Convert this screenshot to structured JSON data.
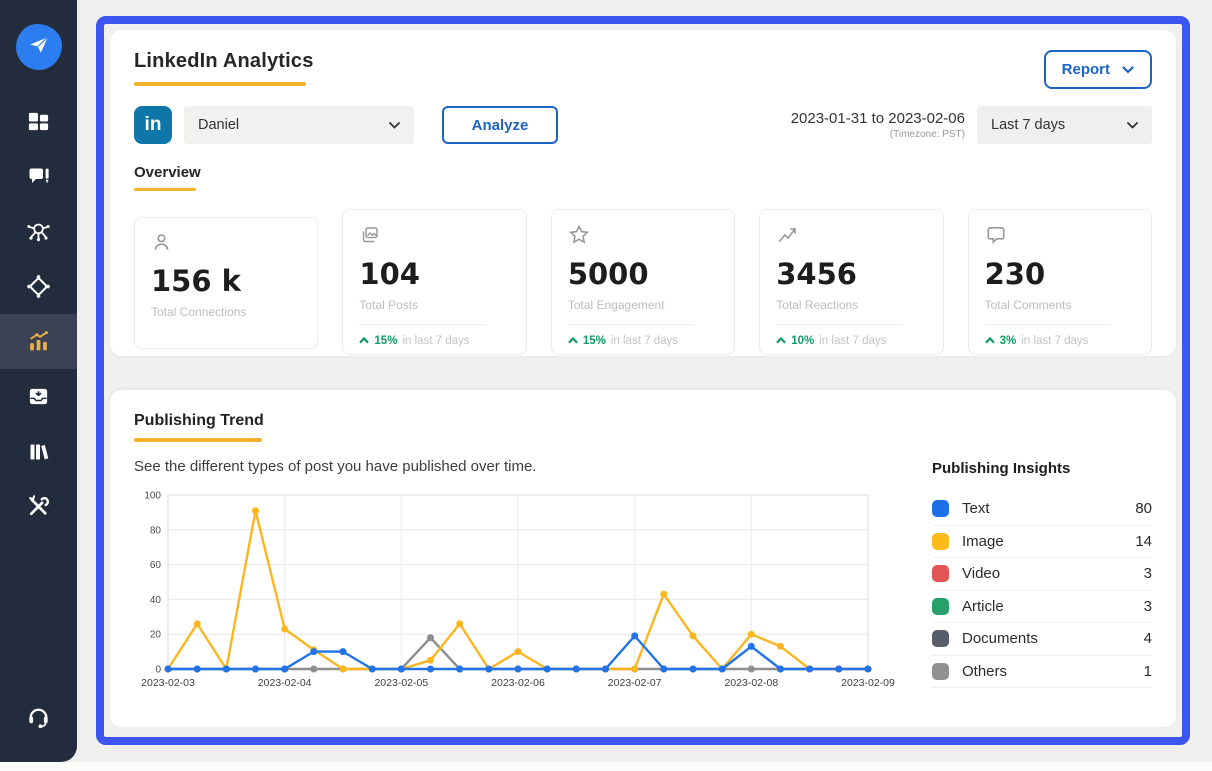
{
  "header": {
    "title": "LinkedIn Analytics",
    "report_button": "Report",
    "linkedin_badge": "in",
    "account_select": "Daniel",
    "analyze_button": "Analyze",
    "date_range": "2023-01-31 to 2023-02-06",
    "timezone": "(Timezone: PST)",
    "range_select": "Last 7 days",
    "tab_overview": "Overview"
  },
  "sidebar": {
    "items": [
      {
        "icon": "send-logo-icon"
      },
      {
        "icon": "dashboard-grid-icon"
      },
      {
        "icon": "chat-compose-icon"
      },
      {
        "icon": "network-share-icon"
      },
      {
        "icon": "diamond-nodes-icon"
      },
      {
        "icon": "analytics-bars-icon",
        "active": true
      },
      {
        "icon": "inbox-import-icon"
      },
      {
        "icon": "library-books-icon"
      },
      {
        "icon": "tools-icon"
      },
      {
        "icon": "headset-support-icon"
      }
    ]
  },
  "stats": [
    {
      "icon": "person-icon",
      "value": "156 k",
      "label": "Total Connections"
    },
    {
      "icon": "image-post-icon",
      "value": "104",
      "label": "Total Posts",
      "delta": "15%",
      "delta_suffix": "in last 7 days"
    },
    {
      "icon": "star-icon",
      "value": "5000",
      "label": "Total Engagement",
      "delta": "15%",
      "delta_suffix": "in last 7 days"
    },
    {
      "icon": "trend-icon",
      "value": "3456",
      "label": "Total Reactions",
      "delta": "10%",
      "delta_suffix": "in last 7 days"
    },
    {
      "icon": "comment-icon",
      "value": "230",
      "label": "Total Comments",
      "delta": "3%",
      "delta_suffix": "in last 7 days"
    }
  ],
  "trend": {
    "title": "Publishing Trend",
    "subtitle": "See the different types of post you have published over time."
  },
  "insights": {
    "title": "Publishing Insights",
    "items": [
      {
        "label": "Text",
        "value": 80,
        "color": "#1d6fe8"
      },
      {
        "label": "Image",
        "value": 14,
        "color": "#fbbc19"
      },
      {
        "label": "Video",
        "value": 3,
        "color": "#e15654"
      },
      {
        "label": "Article",
        "value": 3,
        "color": "#27a06a"
      },
      {
        "label": "Documents",
        "value": 4,
        "color": "#575e69"
      },
      {
        "label": "Others",
        "value": 1,
        "color": "#919191"
      }
    ]
  },
  "colors": {
    "accent_yellow": "#f2b32c",
    "frame_blue": "#3d55f1",
    "sidebar_bg": "#232c3d",
    "button_blue": "#1d63c4",
    "positive_green": "#0d9c63",
    "linkedin_blue": "#0e76a8"
  },
  "chart_data": {
    "type": "line",
    "title": "Publishing Trend",
    "x_tick_labels": [
      "2023-02-03",
      "2023-02-04",
      "2023-02-05",
      "2023-02-06",
      "2023-02-07",
      "2023-02-08",
      "2023-02-09"
    ],
    "points_per_day": 4,
    "n_points": 25,
    "ylim": [
      0,
      100
    ],
    "yticks": [
      0,
      20,
      40,
      60,
      80,
      100
    ],
    "grid": true,
    "legend_position": "right",
    "series": [
      {
        "name": "Text",
        "color": "#2272e8",
        "values": [
          0,
          0,
          0,
          0,
          0,
          10,
          10,
          0,
          0,
          0,
          0,
          0,
          0,
          0,
          0,
          0,
          19,
          0,
          0,
          0,
          13,
          0,
          0,
          0,
          0
        ]
      },
      {
        "name": "Image",
        "color": "#fbb51f",
        "values": [
          0,
          26,
          0,
          91,
          23,
          11,
          0,
          0,
          0,
          5,
          26,
          0,
          10,
          0,
          0,
          0,
          0,
          43,
          19,
          0,
          20,
          13,
          0,
          0,
          0
        ]
      },
      {
        "name": "Others",
        "color": "#8e8e8e",
        "values": [
          0,
          0,
          0,
          0,
          0,
          0,
          0,
          0,
          0,
          18,
          0,
          0,
          0,
          0,
          0,
          0,
          0,
          0,
          0,
          0,
          0,
          0,
          0,
          0,
          0
        ]
      }
    ]
  }
}
